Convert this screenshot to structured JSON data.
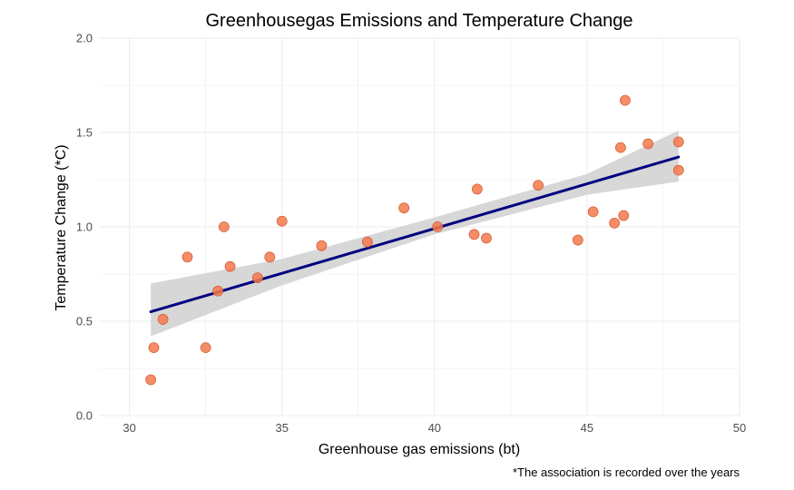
{
  "chart_data": {
    "type": "scatter",
    "title": "Greenhousegas Emissions and Temperature Change",
    "xlabel": "Greenhouse gas emissions (bt)",
    "ylabel": "Temperature Change (*C)",
    "caption": "*The association is recorded over the years",
    "xlim": [
      29,
      50
    ],
    "ylim": [
      0,
      2.0
    ],
    "x_ticks": [
      30,
      35,
      40,
      45,
      50
    ],
    "y_ticks": [
      0.0,
      0.5,
      1.0,
      1.5,
      2.0
    ],
    "x_tick_labels": [
      "30",
      "35",
      "40",
      "45",
      "50"
    ],
    "y_tick_labels": [
      "0.0",
      "0.5",
      "1.0",
      "1.5",
      "2.0"
    ],
    "grid": true,
    "colors": {
      "points": "#f4794b",
      "points_edge": "#d4623a",
      "trend_line": "#00007f",
      "confidence_band": "#d3d3d3",
      "grid": "#ebebeb"
    },
    "points": [
      {
        "x": 30.7,
        "y": 0.19
      },
      {
        "x": 30.8,
        "y": 0.36
      },
      {
        "x": 31.1,
        "y": 0.51
      },
      {
        "x": 31.9,
        "y": 0.84
      },
      {
        "x": 32.5,
        "y": 0.36
      },
      {
        "x": 32.9,
        "y": 0.66
      },
      {
        "x": 33.1,
        "y": 1.0
      },
      {
        "x": 33.3,
        "y": 0.79
      },
      {
        "x": 34.2,
        "y": 0.73
      },
      {
        "x": 34.6,
        "y": 0.84
      },
      {
        "x": 35.0,
        "y": 1.03
      },
      {
        "x": 36.3,
        "y": 0.9
      },
      {
        "x": 37.8,
        "y": 0.92
      },
      {
        "x": 39.0,
        "y": 1.1
      },
      {
        "x": 40.1,
        "y": 1.0
      },
      {
        "x": 41.3,
        "y": 0.96
      },
      {
        "x": 41.4,
        "y": 1.2
      },
      {
        "x": 41.7,
        "y": 0.94
      },
      {
        "x": 43.4,
        "y": 1.22
      },
      {
        "x": 44.7,
        "y": 0.93
      },
      {
        "x": 45.2,
        "y": 1.08
      },
      {
        "x": 45.9,
        "y": 1.02
      },
      {
        "x": 46.1,
        "y": 1.42
      },
      {
        "x": 46.2,
        "y": 1.06
      },
      {
        "x": 46.25,
        "y": 1.67
      },
      {
        "x": 47.0,
        "y": 1.44
      },
      {
        "x": 48.0,
        "y": 1.45
      },
      {
        "x": 48.0,
        "y": 1.3
      }
    ],
    "trend": {
      "type": "linear",
      "x": [
        30.7,
        48.0
      ],
      "y": [
        0.55,
        1.37
      ]
    },
    "confidence_band": {
      "x": [
        30.7,
        35.0,
        40.0,
        45.0,
        48.0
      ],
      "lower": [
        0.42,
        0.69,
        0.96,
        1.17,
        1.24
      ],
      "upper": [
        0.7,
        0.83,
        1.05,
        1.28,
        1.51
      ]
    }
  }
}
